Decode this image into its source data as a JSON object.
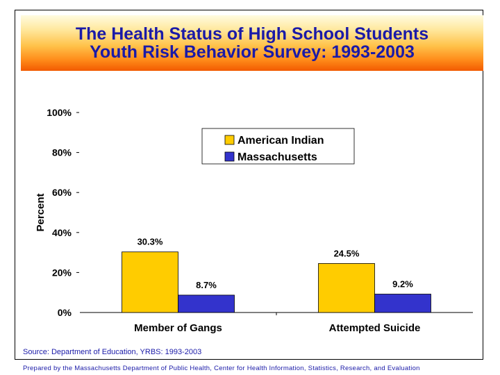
{
  "slide": {
    "title_line1": "The Health Status of High School Students",
    "title_line2": "Youth Risk Behavior Survey: 1993-2003",
    "source": "Source: Department of Education, YRBS: 1993-2003",
    "footer": "Prepared by the Massachusetts Department of Public Health, Center for Health Information, Statistics, Research, and Evaluation"
  },
  "colors": {
    "american_indian": "#ffcc00",
    "massachusetts": "#3333cc",
    "title_text": "#1a1aa8"
  },
  "chart_data": {
    "type": "bar",
    "categories": [
      "Member of Gangs",
      "Attempted Suicide"
    ],
    "series": [
      {
        "name": "American Indian",
        "values": [
          30.3,
          24.5
        ],
        "labels": [
          "30.3%",
          "24.5%"
        ]
      },
      {
        "name": "Massachusetts",
        "values": [
          8.7,
          9.2
        ],
        "labels": [
          "8.7%",
          "9.2%"
        ]
      }
    ],
    "ylabel": "Percent",
    "ylim": [
      0,
      100
    ],
    "yticks": [
      0,
      20,
      40,
      60,
      80,
      100
    ],
    "ytick_labels": [
      "0%",
      "20%",
      "40%",
      "60%",
      "80%",
      "100%"
    ],
    "legend": "top-right",
    "grid": false
  }
}
